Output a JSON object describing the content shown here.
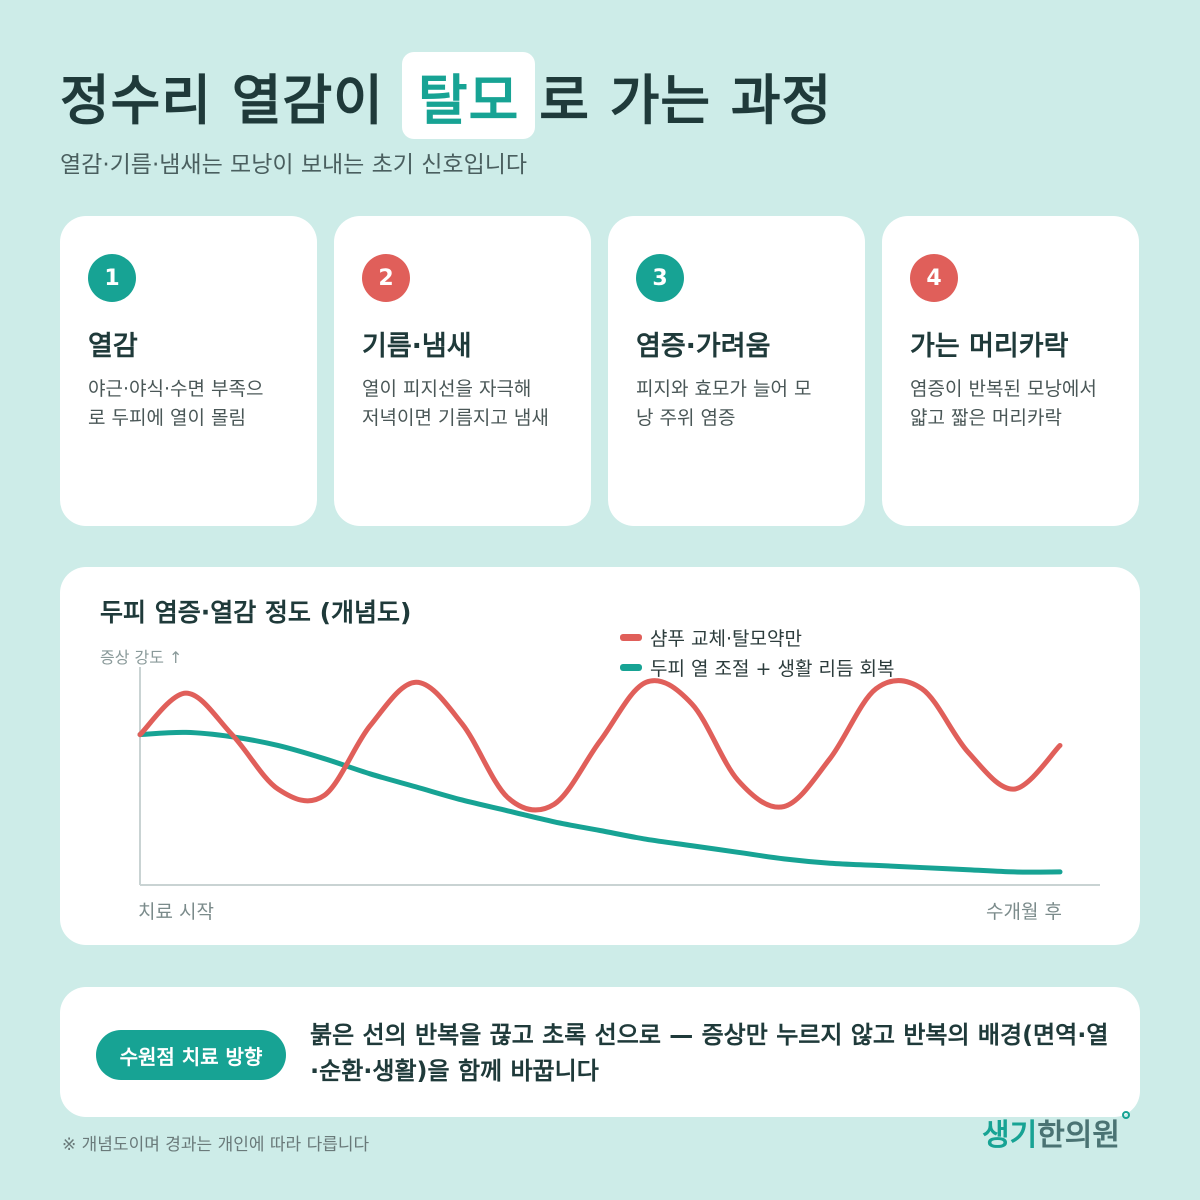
{
  "header": {
    "title_before": "정수리 열감이",
    "title_highlight": "탈모",
    "title_after": "로 가는 과정",
    "subtitle": "열감·기름·냄새는 모낭이 보내는 초기 신호입니다"
  },
  "steps": [
    {
      "number": "1",
      "title": "열감",
      "desc_line1": "야근·야식·수면 부족으",
      "desc_line2": "로 두피에 열이 몰림",
      "color": "#17a394"
    },
    {
      "number": "2",
      "title": "기름·냄새",
      "desc_line1": "열이 피지선을 자극해",
      "desc_line2": "저녁이면 기름지고 냄새",
      "color": "#e05f5a"
    },
    {
      "number": "3",
      "title": "염증·가려움",
      "desc_line1": "피지와 효모가 늘어 모",
      "desc_line2": "낭 주위 염증",
      "color": "#17a394"
    },
    {
      "number": "4",
      "title": "가는 머리카락",
      "desc_line1": "염증이 반복된 모낭에서",
      "desc_line2": "얇고 짧은 머리카락",
      "color": "#e05f5a"
    }
  ],
  "chart_data": {
    "type": "line",
    "title": "두피 염증·열감 정도 (개념도)",
    "ylabel": "증상 강도 ↑",
    "x_start_label": "치료 시작",
    "x_end_label": "수개월 후",
    "x": [
      0,
      0.05,
      0.1,
      0.15,
      0.2,
      0.25,
      0.3,
      0.35,
      0.4,
      0.45,
      0.5,
      0.55,
      0.6,
      0.65,
      0.7,
      0.75,
      0.8,
      0.85,
      0.9,
      0.95,
      1.0
    ],
    "ylim": [
      0,
      1
    ],
    "grid": false,
    "legend_position": "top-right",
    "series": [
      {
        "name": "샴푸 교체·탈모약만",
        "color": "#e05f5a",
        "values": [
          0.69,
          0.88,
          0.69,
          0.44,
          0.41,
          0.73,
          0.93,
          0.74,
          0.4,
          0.37,
          0.66,
          0.93,
          0.83,
          0.48,
          0.36,
          0.58,
          0.9,
          0.9,
          0.61,
          0.44,
          0.64
        ]
      },
      {
        "name": "두피 열 조절 + 생활 리듬 회복",
        "color": "#17a394",
        "values": [
          0.69,
          0.7,
          0.68,
          0.64,
          0.58,
          0.51,
          0.45,
          0.39,
          0.34,
          0.29,
          0.25,
          0.21,
          0.18,
          0.15,
          0.12,
          0.1,
          0.09,
          0.08,
          0.07,
          0.06,
          0.06
        ]
      }
    ]
  },
  "note": {
    "pill_label": "수원점 치료 방향",
    "text": "붉은 선의 반복을 끊고 초록 선으로 — 증상만 누르지 않고 반복의 배경(면역·열·순환·생활)을 함께 바꿉니다"
  },
  "footnote": "※ 개념도이며 경과는 개인에 따라 다릅니다",
  "logo": {
    "part1": "생기",
    "part2": "한의원"
  },
  "colors": {
    "background": "#cdece8",
    "accent": "#17a394",
    "warning": "#e05f5a"
  }
}
